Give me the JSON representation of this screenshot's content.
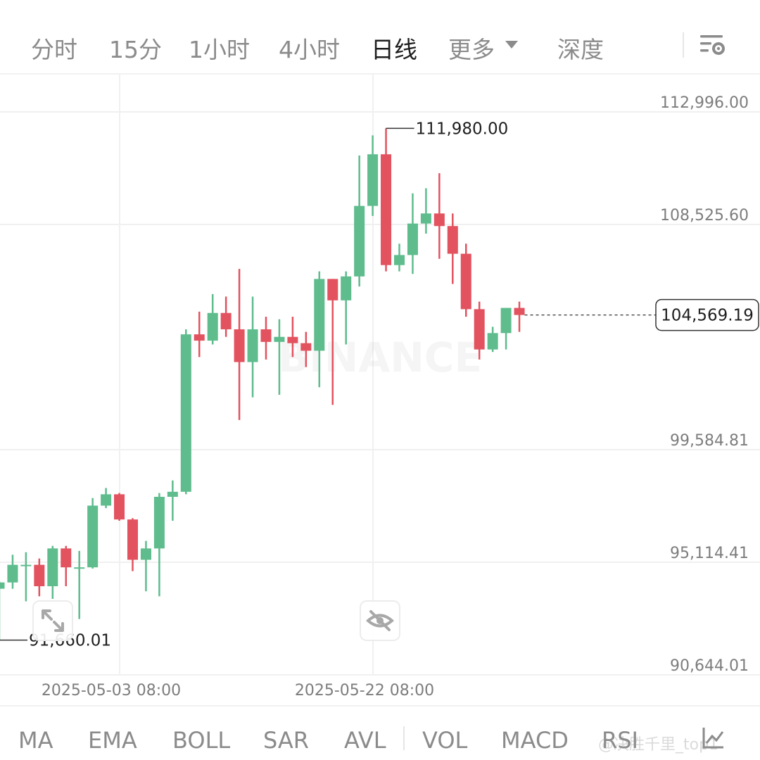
{
  "toolbar": {
    "tabs": [
      {
        "label": "分时",
        "active": false
      },
      {
        "label": "15分",
        "active": false
      },
      {
        "label": "1小时",
        "active": false
      },
      {
        "label": "4小时",
        "active": false
      },
      {
        "label": "日线",
        "active": true
      },
      {
        "label": "更多",
        "active": false
      },
      {
        "label": "深度",
        "active": false
      }
    ],
    "more_icon": "caret-down-icon",
    "settings_icon": "chart-settings-icon"
  },
  "indicators": {
    "tabs": [
      "MA",
      "EMA",
      "BOLL",
      "SAR",
      "AVL",
      "VOL",
      "MACD",
      "RSI"
    ],
    "right_icon": "indicator-settings-icon"
  },
  "overlay_watermark": "BINANCE",
  "bottom_watermark": "@决胜千里_top1",
  "colors": {
    "up": "#5ebc8d",
    "down": "#e2525f",
    "grid": "#f0f0f0",
    "axis_text": "#7d7d7d",
    "active_tab": "#1e1e1e"
  },
  "chart_data": {
    "type": "candlestick",
    "y_ticks": [
      "112,996.00",
      "108,525.60",
      "99,584.81",
      "95,114.41",
      "90,644.01"
    ],
    "x_ticks": [
      "2025-05-03 08:00",
      "2025-05-22 08:00"
    ],
    "high_label": "111,980.00",
    "low_label": "91,660.01",
    "last_price_label": "104,569.19",
    "grid": true,
    "candles": [
      [
        93700,
        94000,
        91660,
        93950
      ],
      [
        93950,
        95050,
        93700,
        94650
      ],
      [
        94650,
        95150,
        93200,
        94650
      ],
      [
        94650,
        94900,
        93400,
        93800
      ],
      [
        93800,
        95400,
        93300,
        95300
      ],
      [
        95300,
        95400,
        93800,
        94550
      ],
      [
        94550,
        95200,
        92500,
        94550
      ],
      [
        94550,
        97300,
        94500,
        97000
      ],
      [
        97000,
        97700,
        96900,
        97450
      ],
      [
        97450,
        97500,
        96400,
        96450
      ],
      [
        96450,
        96500,
        94400,
        94850
      ],
      [
        94850,
        95600,
        93600,
        95300
      ],
      [
        95300,
        97500,
        93400,
        97350
      ],
      [
        97350,
        98000,
        96400,
        97550
      ],
      [
        97550,
        104000,
        97450,
        103800
      ],
      [
        103800,
        104700,
        102900,
        103550
      ],
      [
        103550,
        105400,
        103400,
        104650
      ],
      [
        104650,
        105300,
        103700,
        104000
      ],
      [
        104000,
        106400,
        100400,
        102700
      ],
      [
        102700,
        105300,
        101300,
        104000
      ],
      [
        104000,
        104500,
        102800,
        103500
      ],
      [
        103500,
        104400,
        101400,
        103700
      ],
      [
        103700,
        104500,
        102900,
        103450
      ],
      [
        103450,
        103900,
        102500,
        103150
      ],
      [
        103150,
        106300,
        101700,
        106000
      ],
      [
        106000,
        106000,
        101000,
        105150
      ],
      [
        105150,
        106300,
        103400,
        106100
      ],
      [
        106100,
        110900,
        105700,
        108900
      ],
      [
        108900,
        111700,
        108500,
        110950
      ],
      [
        110950,
        111980,
        106300,
        106550
      ],
      [
        106550,
        107400,
        106300,
        106950
      ],
      [
        106950,
        109400,
        106200,
        108200
      ],
      [
        108200,
        109600,
        107800,
        108600
      ],
      [
        108600,
        110200,
        106800,
        108100
      ],
      [
        108100,
        108600,
        105800,
        107000
      ],
      [
        107000,
        107400,
        104500,
        104800
      ],
      [
        104800,
        105100,
        102800,
        103200
      ],
      [
        103200,
        104100,
        103100,
        103850
      ],
      [
        103850,
        104800,
        103200,
        104850
      ],
      [
        104850,
        105100,
        103900,
        104569.19
      ]
    ]
  }
}
